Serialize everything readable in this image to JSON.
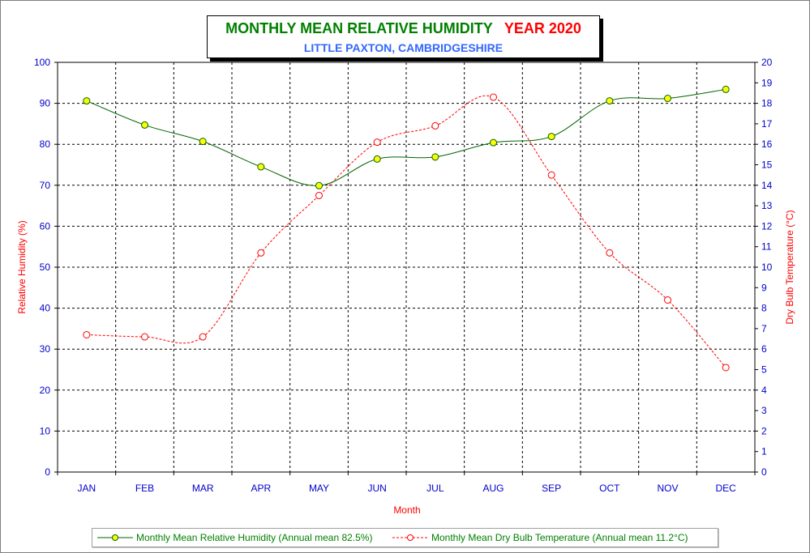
{
  "title": {
    "main": "MONTHLY MEAN RELATIVE HUMIDITY",
    "year": "YEAR 2020",
    "subtitle": "LITTLE PAXTON, CAMBRIDGESHIRE"
  },
  "legend": {
    "humidity": "Monthly Mean Relative Humidity (Annual mean 82.5%)",
    "temperature": "Monthly Mean Dry Bulb Temperature (Annual mean 11.2°C)"
  },
  "colors": {
    "humidity": "#006400",
    "temperature": "#ff0000",
    "axis_text": "#0000cc",
    "marker_fill": "#ffff00"
  },
  "chart_data": {
    "type": "line",
    "title": "MONTHLY MEAN RELATIVE HUMIDITY YEAR 2020",
    "subtitle": "LITTLE PAXTON, CAMBRIDGESHIRE",
    "xlabel": "Month",
    "ylabel": "Relative Humidity (%)",
    "y2label": "Dry Bulb Temperature (°C)",
    "categories": [
      "JAN",
      "FEB",
      "MAR",
      "APR",
      "MAY",
      "JUN",
      "JUL",
      "AUG",
      "SEP",
      "OCT",
      "NOV",
      "DEC"
    ],
    "ylim": [
      0,
      100
    ],
    "y2lim": [
      0,
      20
    ],
    "yticks": [
      "0",
      "10",
      "20",
      "30",
      "40",
      "50",
      "60",
      "70",
      "80",
      "90",
      "100"
    ],
    "y2ticks": [
      "0",
      "1",
      "2",
      "3",
      "4",
      "5",
      "6",
      "7",
      "8",
      "9",
      "10",
      "11",
      "12",
      "13",
      "14",
      "15",
      "16",
      "17",
      "18",
      "19",
      "20"
    ],
    "grid": true,
    "legend_position": "bottom",
    "series": [
      {
        "name": "Monthly Mean Relative Humidity (Annual mean 82.5%)",
        "axis": "left",
        "style": "solid",
        "marker": "filled-circle",
        "values": [
          90.6,
          84.7,
          80.7,
          74.5,
          69.9,
          76.4,
          76.9,
          80.4,
          81.9,
          90.6,
          91.2,
          93.4
        ]
      },
      {
        "name": "Monthly Mean Dry Bulb Temperature (Annual mean 11.2°C)",
        "axis": "right",
        "style": "dashed",
        "marker": "open-circle",
        "values": [
          6.7,
          6.6,
          6.6,
          10.7,
          13.5,
          16.1,
          16.9,
          18.3,
          14.5,
          10.7,
          8.4,
          5.1
        ]
      }
    ]
  }
}
